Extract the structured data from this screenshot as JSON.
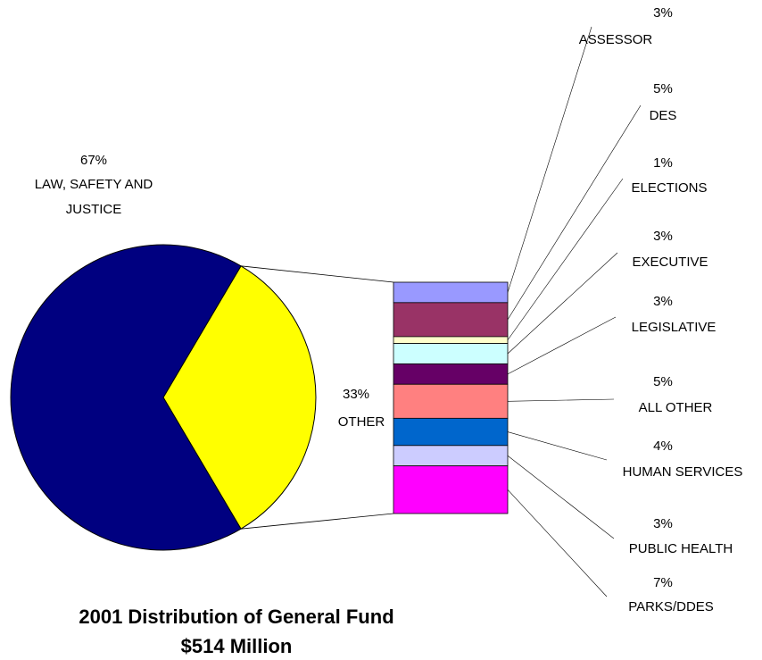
{
  "chart_data": {
    "type": "pie-of-bar",
    "title": "2001 Distribution of General Fund",
    "subtitle": "$514 Million",
    "categories": [
      "LAW, SAFETY AND JUSTICE",
      "OTHER"
    ],
    "values": [
      67,
      33
    ],
    "value_labels": [
      "67%",
      "33%"
    ],
    "colors": [
      "#000080",
      "#ffff00"
    ],
    "bar": {
      "categories": [
        "ASSESSOR",
        "DES",
        "ELECTIONS",
        "EXECUTIVE",
        "LEGISLATIVE",
        "ALL OTHER",
        "HUMAN SERVICES",
        "PUBLIC HEALTH",
        "PARKS/DDES"
      ],
      "values": [
        3,
        5,
        1,
        3,
        3,
        5,
        4,
        3,
        7
      ],
      "value_labels": [
        "3%",
        "5%",
        "1%",
        "3%",
        "3%",
        "5%",
        "4%",
        "3%",
        "7%"
      ],
      "colors": [
        "#9999ff",
        "#993366",
        "#ffffcc",
        "#ccffff",
        "#660066",
        "#ff8080",
        "#0066cc",
        "#ccccff",
        "#ff00ff"
      ]
    }
  }
}
